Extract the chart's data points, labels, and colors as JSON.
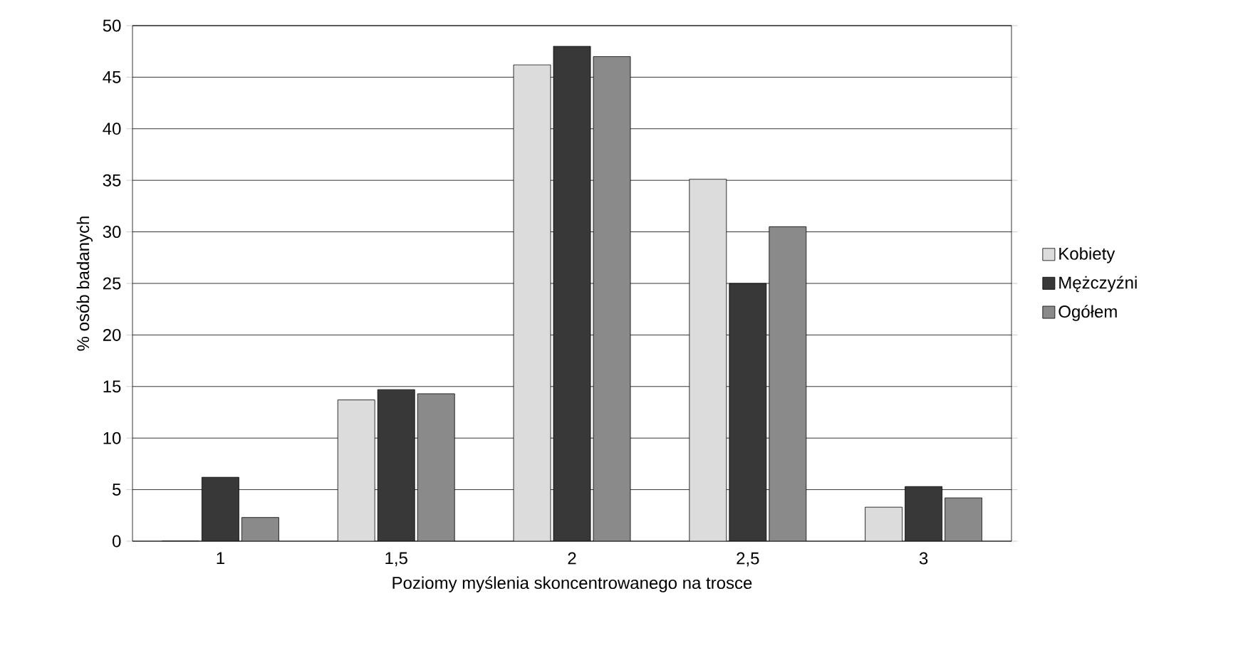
{
  "chart_data": {
    "type": "bar",
    "xlabel": "Poziomy myślenia skoncentrowanego na trosce",
    "ylabel": "% osób badanych",
    "categories": [
      "1",
      "1,5",
      "2",
      "2,5",
      "3"
    ],
    "series": [
      {
        "name": "Kobiety",
        "color": "#dcdcdc",
        "values": [
          0,
          13.7,
          46.2,
          35.1,
          3.3
        ]
      },
      {
        "name": "Mężczyźni",
        "color": "#383838",
        "values": [
          6.2,
          14.7,
          48.0,
          25.0,
          5.3
        ]
      },
      {
        "name": "Ogółem",
        "color": "#8a8a8a",
        "values": [
          2.3,
          14.3,
          47.0,
          30.5,
          4.2
        ]
      }
    ],
    "ylim": [
      0,
      50
    ],
    "yticks": [
      0,
      5,
      10,
      15,
      20,
      25,
      30,
      35,
      40,
      45,
      50
    ],
    "grid": "y",
    "legend": "right"
  }
}
